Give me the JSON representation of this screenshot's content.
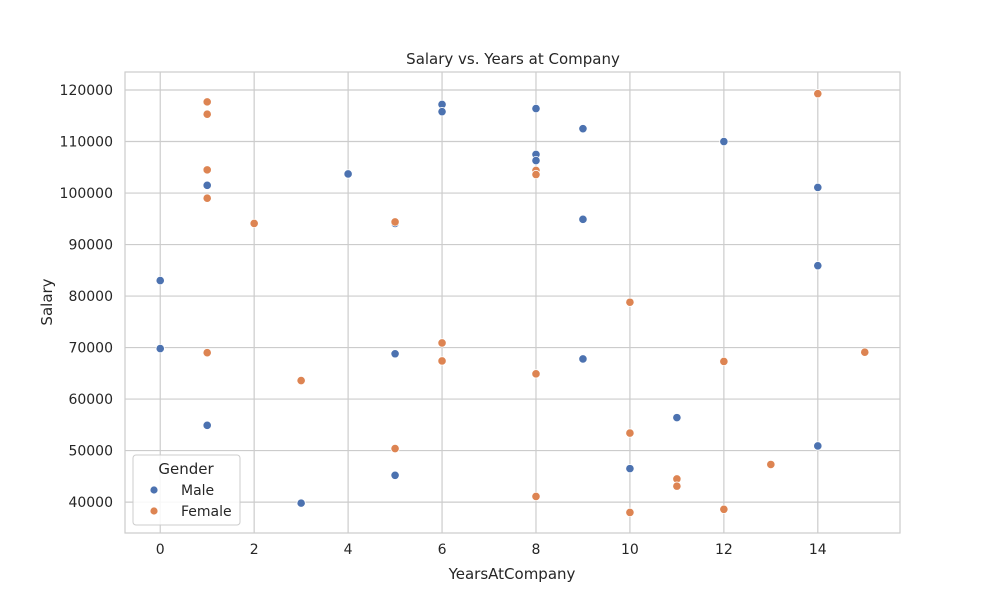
{
  "chart_data": {
    "type": "scatter",
    "title": "Salary vs. Years at Company",
    "xlabel": "YearsAtCompany",
    "ylabel": "Salary",
    "xlim": [
      -0.75,
      15.75
    ],
    "ylim": [
      34000,
      123500
    ],
    "xticks": [
      0,
      2,
      4,
      6,
      8,
      10,
      12,
      14
    ],
    "yticks": [
      40000,
      50000,
      60000,
      70000,
      80000,
      90000,
      100000,
      110000,
      120000
    ],
    "grid": true,
    "legend": {
      "title": "Gender",
      "position": "bottom-left"
    },
    "series": [
      {
        "name": "Male",
        "color": "#4c72b0",
        "points": [
          [
            0,
            83000
          ],
          [
            0,
            69800
          ],
          [
            1,
            101500
          ],
          [
            1,
            54900
          ],
          [
            3,
            39800
          ],
          [
            4,
            103700
          ],
          [
            5,
            94100
          ],
          [
            5,
            68800
          ],
          [
            5,
            45200
          ],
          [
            6,
            117200
          ],
          [
            6,
            115800
          ],
          [
            8,
            116400
          ],
          [
            8,
            107500
          ],
          [
            8,
            106300
          ],
          [
            9,
            112500
          ],
          [
            9,
            94900
          ],
          [
            9,
            67800
          ],
          [
            10,
            46500
          ],
          [
            11,
            56400
          ],
          [
            12,
            110000
          ],
          [
            14,
            101100
          ],
          [
            14,
            85900
          ],
          [
            14,
            50900
          ]
        ]
      },
      {
        "name": "Female",
        "color": "#dd8452",
        "points": [
          [
            1,
            117700
          ],
          [
            1,
            115300
          ],
          [
            1,
            104500
          ],
          [
            1,
            99000
          ],
          [
            1,
            69000
          ],
          [
            2,
            94100
          ],
          [
            3,
            63600
          ],
          [
            5,
            94400
          ],
          [
            5,
            50400
          ],
          [
            6,
            70900
          ],
          [
            6,
            67400
          ],
          [
            8,
            104400
          ],
          [
            8,
            103600
          ],
          [
            8,
            64900
          ],
          [
            8,
            41100
          ],
          [
            10,
            78800
          ],
          [
            10,
            53400
          ],
          [
            10,
            38000
          ],
          [
            11,
            44500
          ],
          [
            11,
            43100
          ],
          [
            12,
            67300
          ],
          [
            12,
            38600
          ],
          [
            13,
            47300
          ],
          [
            14,
            119300
          ],
          [
            15,
            69100
          ]
        ]
      }
    ]
  }
}
